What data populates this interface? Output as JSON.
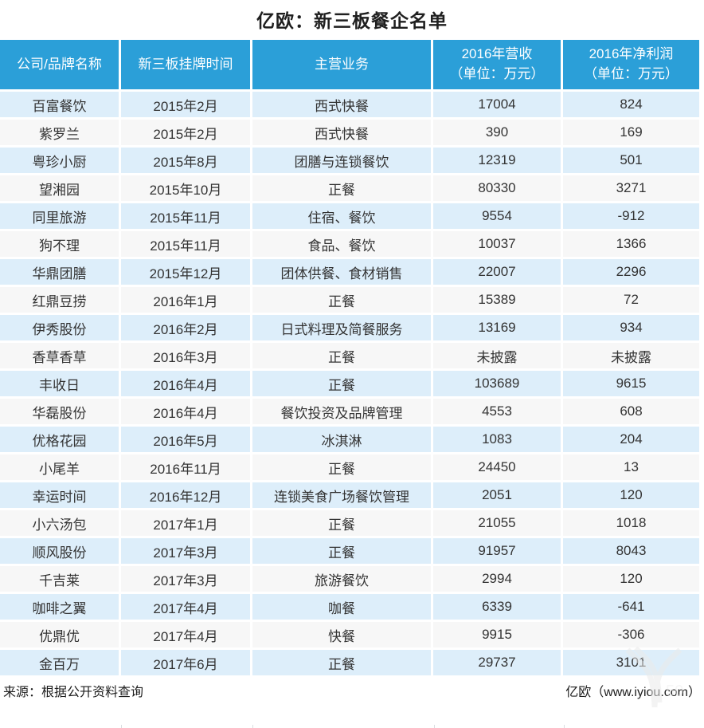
{
  "title": "亿欧：新三板餐企名单",
  "colors": {
    "header_bg": "#2b9fd8",
    "header_text": "#ffffff",
    "row_odd_bg": "#ddeefa",
    "row_even_bg": "#f7f7f7",
    "body_text": "#333333"
  },
  "chart_data": {
    "type": "table",
    "title": "亿欧：新三板餐企名单",
    "columns": [
      {
        "key": "company",
        "line1": "公司/品牌名称",
        "line2": ""
      },
      {
        "key": "listing-date",
        "line1": "新三板挂牌时间",
        "line2": ""
      },
      {
        "key": "main-business",
        "line1": "主营业务",
        "line2": ""
      },
      {
        "key": "revenue-2016",
        "line1": "2016年营收",
        "line2": "（单位：万元）"
      },
      {
        "key": "net-profit-2016",
        "line1": "2016年净利润",
        "line2": "（单位：万元）"
      }
    ],
    "rows": [
      [
        "百富餐饮",
        "2015年2月",
        "西式快餐",
        "17004",
        "824"
      ],
      [
        "紫罗兰",
        "2015年2月",
        "西式快餐",
        "390",
        "169"
      ],
      [
        "粤珍小厨",
        "2015年8月",
        "团膳与连锁餐饮",
        "12319",
        "501"
      ],
      [
        "望湘园",
        "2015年10月",
        "正餐",
        "80330",
        "3271"
      ],
      [
        "同里旅游",
        "2015年11月",
        "住宿、餐饮",
        "9554",
        "-912"
      ],
      [
        "狗不理",
        "2015年11月",
        "食品、餐饮",
        "10037",
        "1366"
      ],
      [
        "华鼎团膳",
        "2015年12月",
        "团体供餐、食材销售",
        "22007",
        "2296"
      ],
      [
        "红鼎豆捞",
        "2016年1月",
        "正餐",
        "15389",
        "72"
      ],
      [
        "伊秀股份",
        "2016年2月",
        "日式料理及简餐服务",
        "13169",
        "934"
      ],
      [
        "香草香草",
        "2016年3月",
        "正餐",
        "未披露",
        "未披露"
      ],
      [
        "丰收日",
        "2016年4月",
        "正餐",
        "103689",
        "9615"
      ],
      [
        "华磊股份",
        "2016年4月",
        "餐饮投资及品牌管理",
        "4553",
        "608"
      ],
      [
        "优格花园",
        "2016年5月",
        "冰淇淋",
        "1083",
        "204"
      ],
      [
        "小尾羊",
        "2016年11月",
        "正餐",
        "24450",
        "13"
      ],
      [
        "幸运时间",
        "2016年12月",
        "连锁美食广场餐饮管理",
        "2051",
        "120"
      ],
      [
        "小六汤包",
        "2017年1月",
        "正餐",
        "21055",
        "1018"
      ],
      [
        "顺风股份",
        "2017年3月",
        "正餐",
        "91957",
        "8043"
      ],
      [
        "千吉莱",
        "2017年3月",
        "旅游餐饮",
        "2994",
        "120"
      ],
      [
        "咖啡之翼",
        "2017年4月",
        "咖餐",
        "6339",
        "-641"
      ],
      [
        "优鼎优",
        "2017年4月",
        "快餐",
        "9915",
        "-306"
      ],
      [
        "金百万",
        "2017年6月",
        "正餐",
        "29737",
        "3101"
      ]
    ]
  },
  "footer": {
    "source": "来源：根据公开资料查询",
    "brand": "亿欧（www.iyiou.com）"
  }
}
